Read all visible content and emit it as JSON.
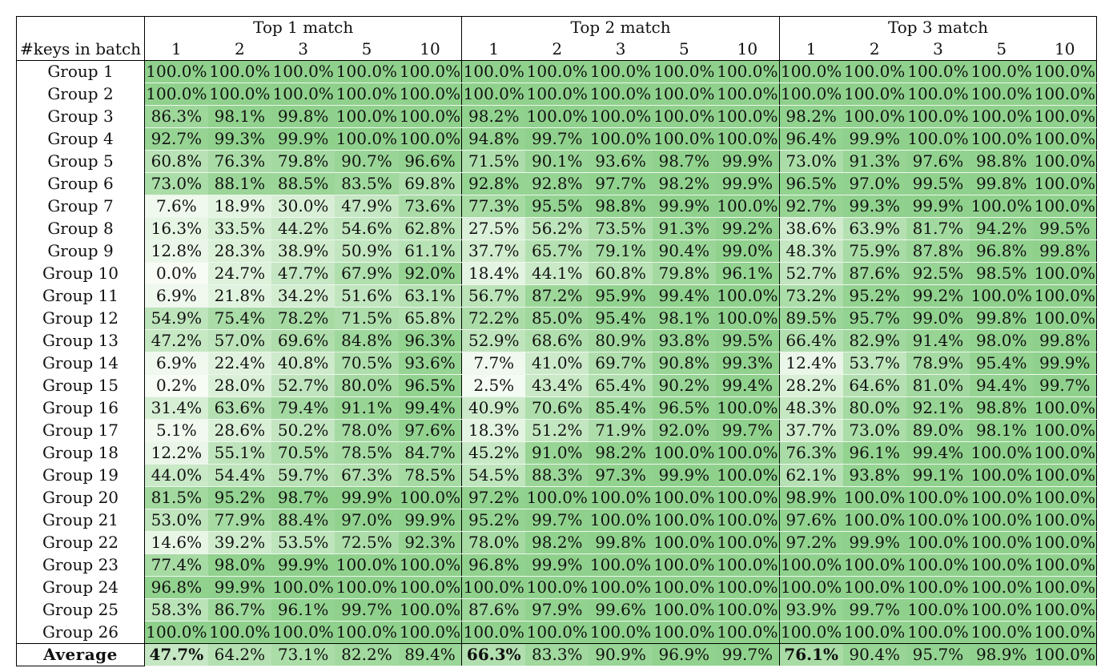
{
  "header": {
    "corner_label": "#keys in batch",
    "groups": [
      {
        "label": "Top 1 match",
        "keys": [
          "1",
          "2",
          "3",
          "5",
          "10"
        ]
      },
      {
        "label": "Top 2 match",
        "keys": [
          "1",
          "2",
          "3",
          "5",
          "10"
        ]
      },
      {
        "label": "Top 3 match",
        "keys": [
          "1",
          "2",
          "3",
          "5",
          "10"
        ]
      }
    ]
  },
  "rows": [
    {
      "label": "Group 1",
      "values": [
        100.0,
        100.0,
        100.0,
        100.0,
        100.0,
        100.0,
        100.0,
        100.0,
        100.0,
        100.0,
        100.0,
        100.0,
        100.0,
        100.0,
        100.0
      ]
    },
    {
      "label": "Group 2",
      "values": [
        100.0,
        100.0,
        100.0,
        100.0,
        100.0,
        100.0,
        100.0,
        100.0,
        100.0,
        100.0,
        100.0,
        100.0,
        100.0,
        100.0,
        100.0
      ]
    },
    {
      "label": "Group 3",
      "values": [
        86.3,
        98.1,
        99.8,
        100.0,
        100.0,
        98.2,
        100.0,
        100.0,
        100.0,
        100.0,
        98.2,
        100.0,
        100.0,
        100.0,
        100.0
      ]
    },
    {
      "label": "Group 4",
      "values": [
        92.7,
        99.3,
        99.9,
        100.0,
        100.0,
        94.8,
        99.7,
        100.0,
        100.0,
        100.0,
        96.4,
        99.9,
        100.0,
        100.0,
        100.0
      ]
    },
    {
      "label": "Group 5",
      "values": [
        60.8,
        76.3,
        79.8,
        90.7,
        96.6,
        71.5,
        90.1,
        93.6,
        98.7,
        99.9,
        73.0,
        91.3,
        97.6,
        98.8,
        100.0
      ]
    },
    {
      "label": "Group 6",
      "values": [
        73.0,
        88.1,
        88.5,
        83.5,
        69.8,
        92.8,
        92.8,
        97.7,
        98.2,
        99.9,
        96.5,
        97.0,
        99.5,
        99.8,
        100.0
      ]
    },
    {
      "label": "Group 7",
      "values": [
        7.6,
        18.9,
        30.0,
        47.9,
        73.6,
        77.3,
        95.5,
        98.8,
        99.9,
        100.0,
        92.7,
        99.3,
        99.9,
        100.0,
        100.0
      ]
    },
    {
      "label": "Group 8",
      "values": [
        16.3,
        33.5,
        44.2,
        54.6,
        62.8,
        27.5,
        56.2,
        73.5,
        91.3,
        99.2,
        38.6,
        63.9,
        81.7,
        94.2,
        99.5
      ]
    },
    {
      "label": "Group 9",
      "values": [
        12.8,
        28.3,
        38.9,
        50.9,
        61.1,
        37.7,
        65.7,
        79.1,
        90.4,
        99.0,
        48.3,
        75.9,
        87.8,
        96.8,
        99.8
      ]
    },
    {
      "label": "Group 10",
      "values": [
        0.0,
        24.7,
        47.7,
        67.9,
        92.0,
        18.4,
        44.1,
        60.8,
        79.8,
        96.1,
        52.7,
        87.6,
        92.5,
        98.5,
        100.0
      ]
    },
    {
      "label": "Group 11",
      "values": [
        6.9,
        21.8,
        34.2,
        51.6,
        63.1,
        56.7,
        87.2,
        95.9,
        99.4,
        100.0,
        73.2,
        95.2,
        99.2,
        100.0,
        100.0
      ]
    },
    {
      "label": "Group 12",
      "values": [
        54.9,
        75.4,
        78.2,
        71.5,
        65.8,
        72.2,
        85.0,
        95.4,
        98.1,
        100.0,
        89.5,
        95.7,
        99.0,
        99.8,
        100.0
      ]
    },
    {
      "label": "Group 13",
      "values": [
        47.2,
        57.0,
        69.6,
        84.8,
        96.3,
        52.9,
        68.6,
        80.9,
        93.8,
        99.5,
        66.4,
        82.9,
        91.4,
        98.0,
        99.8
      ]
    },
    {
      "label": "Group 14",
      "values": [
        6.9,
        22.4,
        40.8,
        70.5,
        93.6,
        7.7,
        41.0,
        69.7,
        90.8,
        99.3,
        12.4,
        53.7,
        78.9,
        95.4,
        99.9
      ]
    },
    {
      "label": "Group 15",
      "values": [
        0.2,
        28.0,
        52.7,
        80.0,
        96.5,
        2.5,
        43.4,
        65.4,
        90.2,
        99.4,
        28.2,
        64.6,
        81.0,
        94.4,
        99.7
      ]
    },
    {
      "label": "Group 16",
      "values": [
        31.4,
        63.6,
        79.4,
        91.1,
        99.4,
        40.9,
        70.6,
        85.4,
        96.5,
        100.0,
        48.3,
        80.0,
        92.1,
        98.8,
        100.0
      ]
    },
    {
      "label": "Group 17",
      "values": [
        5.1,
        28.6,
        50.2,
        78.0,
        97.6,
        18.3,
        51.2,
        71.9,
        92.0,
        99.7,
        37.7,
        73.0,
        89.0,
        98.1,
        100.0
      ]
    },
    {
      "label": "Group 18",
      "values": [
        12.2,
        55.1,
        70.5,
        78.5,
        84.7,
        45.2,
        91.0,
        98.2,
        100.0,
        100.0,
        76.3,
        96.1,
        99.4,
        100.0,
        100.0
      ]
    },
    {
      "label": "Group 19",
      "values": [
        44.0,
        54.4,
        59.7,
        67.3,
        78.5,
        54.5,
        88.3,
        97.3,
        99.9,
        100.0,
        62.1,
        93.8,
        99.1,
        100.0,
        100.0
      ]
    },
    {
      "label": "Group 20",
      "values": [
        81.5,
        95.2,
        98.7,
        99.9,
        100.0,
        97.2,
        100.0,
        100.0,
        100.0,
        100.0,
        98.9,
        100.0,
        100.0,
        100.0,
        100.0
      ]
    },
    {
      "label": "Group 21",
      "values": [
        53.0,
        77.9,
        88.4,
        97.0,
        99.9,
        95.2,
        99.7,
        100.0,
        100.0,
        100.0,
        97.6,
        100.0,
        100.0,
        100.0,
        100.0
      ]
    },
    {
      "label": "Group 22",
      "values": [
        14.6,
        39.2,
        53.5,
        72.5,
        92.3,
        78.0,
        98.2,
        99.8,
        100.0,
        100.0,
        97.2,
        99.9,
        100.0,
        100.0,
        100.0
      ]
    },
    {
      "label": "Group 23",
      "values": [
        77.4,
        98.0,
        99.9,
        100.0,
        100.0,
        96.8,
        99.9,
        100.0,
        100.0,
        100.0,
        100.0,
        100.0,
        100.0,
        100.0,
        100.0
      ]
    },
    {
      "label": "Group 24",
      "values": [
        96.8,
        99.9,
        100.0,
        100.0,
        100.0,
        100.0,
        100.0,
        100.0,
        100.0,
        100.0,
        100.0,
        100.0,
        100.0,
        100.0,
        100.0
      ]
    },
    {
      "label": "Group 25",
      "values": [
        58.3,
        86.7,
        96.1,
        99.7,
        100.0,
        87.6,
        97.9,
        99.6,
        100.0,
        100.0,
        93.9,
        99.7,
        100.0,
        100.0,
        100.0
      ]
    },
    {
      "label": "Group 26",
      "values": [
        100.0,
        100.0,
        100.0,
        100.0,
        100.0,
        100.0,
        100.0,
        100.0,
        100.0,
        100.0,
        100.0,
        100.0,
        100.0,
        100.0,
        100.0
      ]
    }
  ],
  "average": {
    "label": "Average",
    "values": [
      47.7,
      64.2,
      73.1,
      82.2,
      89.4,
      66.3,
      83.3,
      90.9,
      96.9,
      99.7,
      76.1,
      90.4,
      95.7,
      98.9,
      100.0
    ],
    "bold_indices": [
      0,
      5,
      10
    ]
  },
  "colors": {
    "low": "#f7fcf5",
    "high": "#8fd18c"
  }
}
